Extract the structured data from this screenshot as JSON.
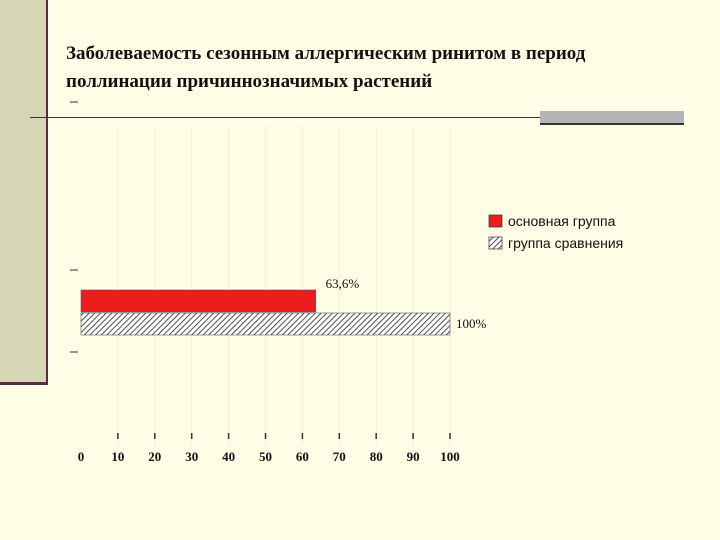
{
  "slide": {
    "title": "Заболеваемость сезонным аллергическим ринитом в период поллинации причиннозначимых растений"
  },
  "colors": {
    "background": "#fefee6",
    "main_series": "#ee1c1c",
    "comparison_series": "hatched"
  },
  "chart_data": {
    "type": "bar",
    "orientation": "horizontal",
    "series": [
      {
        "name": "основная группа",
        "value": 63.6,
        "label": "63,6%",
        "color": "#ee1c1c"
      },
      {
        "name": "группа сравнения",
        "value": 100,
        "label": "100%",
        "pattern": "hatched"
      }
    ],
    "x_ticks": [
      "0",
      "10",
      "20",
      "30",
      "40",
      "50",
      "60",
      "70",
      "80",
      "90",
      "100"
    ],
    "xlim": [
      0,
      100
    ],
    "legend_position": "top-right",
    "grid": false
  }
}
